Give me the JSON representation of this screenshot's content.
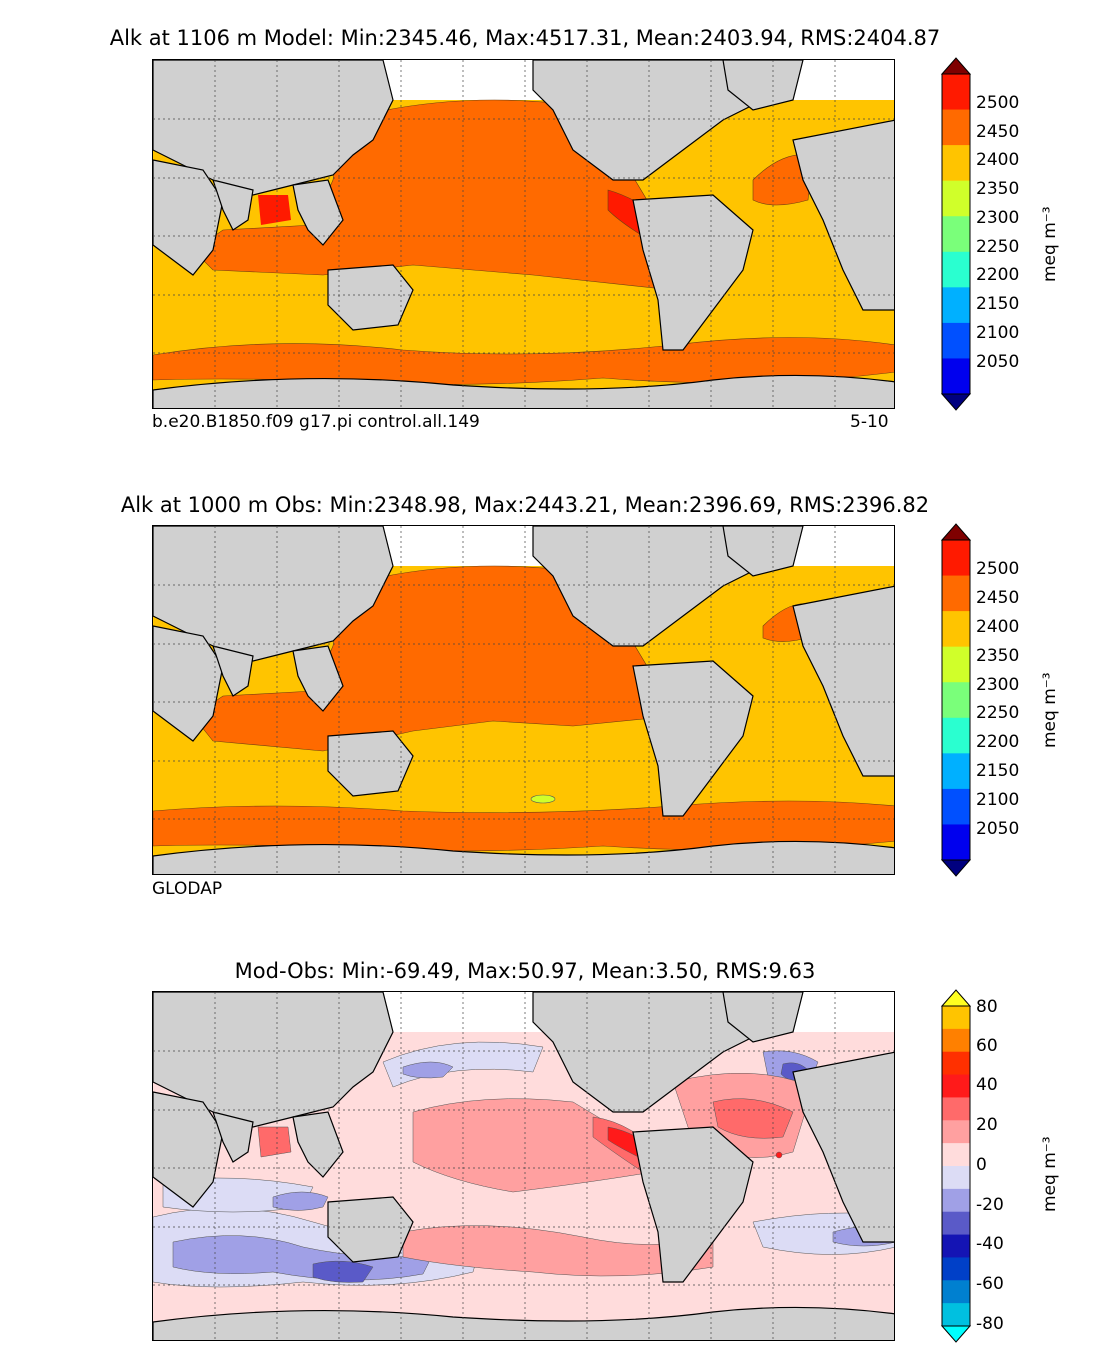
{
  "panels": [
    {
      "title": "Alk at 1106 m Model: Min:2345.46, Max:4517.31, Mean:2403.94, RMS:2404.87",
      "caption_left": "b.e20.B1850.f09 g17.pi control.all.149",
      "caption_right": "5-10",
      "colorbar_unit": "meq m⁻³",
      "colorbar_ticks": [
        "2500",
        "2450",
        "2400",
        "2350",
        "2300",
        "2250",
        "2200",
        "2150",
        "2100",
        "2050"
      ],
      "colorbar_colors": [
        "#7f0000",
        "#ff1a00",
        "#ff6a00",
        "#ffc400",
        "#d0ff2a",
        "#7aff7a",
        "#2affd0",
        "#00b0ff",
        "#0050ff",
        "#0000ee",
        "#00007f"
      ]
    },
    {
      "title": "Alk at 1000 m Obs: Min:2348.98, Max:2443.21, Mean:2396.69, RMS:2396.82",
      "caption_left": "GLODAP",
      "caption_right": "",
      "colorbar_unit": "meq m⁻³",
      "colorbar_ticks": [
        "2500",
        "2450",
        "2400",
        "2350",
        "2300",
        "2250",
        "2200",
        "2150",
        "2100",
        "2050"
      ],
      "colorbar_colors": [
        "#7f0000",
        "#ff1a00",
        "#ff6a00",
        "#ffc400",
        "#d0ff2a",
        "#7aff7a",
        "#2affd0",
        "#00b0ff",
        "#0050ff",
        "#0000ee",
        "#00007f"
      ]
    },
    {
      "title": "Mod-Obs: Min:-69.49, Max:50.97, Mean:3.50, RMS:9.63",
      "caption_left": "",
      "caption_right": "",
      "colorbar_unit": "meq m⁻³",
      "colorbar_ticks": [
        "80",
        "60",
        "40",
        "20",
        "0",
        "-20",
        "-40",
        "-60",
        "-80"
      ],
      "colorbar_colors": [
        "#ffff20",
        "#ffc400",
        "#ff8000",
        "#ff3000",
        "#ff1a1a",
        "#ff6a6a",
        "#ffa0a0",
        "#ffdcdc",
        "#dcdcf5",
        "#a0a0e6",
        "#5a5ac8",
        "#1414b4",
        "#0040c8",
        "#0080d0",
        "#00c0e0",
        "#00ffff"
      ]
    }
  ],
  "colors": {
    "land": "#d0d0d0",
    "no_data": "#ffffff",
    "model_ocean": "#ffc400",
    "model_pacific": "#ff6a00",
    "model_high": "#ff1a00",
    "obs_ocean": "#ffc400",
    "obs_pacific": "#ff6a00",
    "diff_zero_pos": "#ffdcdc",
    "diff_pos": "#ffa0a0",
    "diff_pos2": "#ff6a6a",
    "diff_high": "#ff1a1a",
    "diff_zero_neg": "#dcdcf5",
    "diff_neg": "#a0a0e6",
    "diff_neg2": "#5a5ac8"
  }
}
